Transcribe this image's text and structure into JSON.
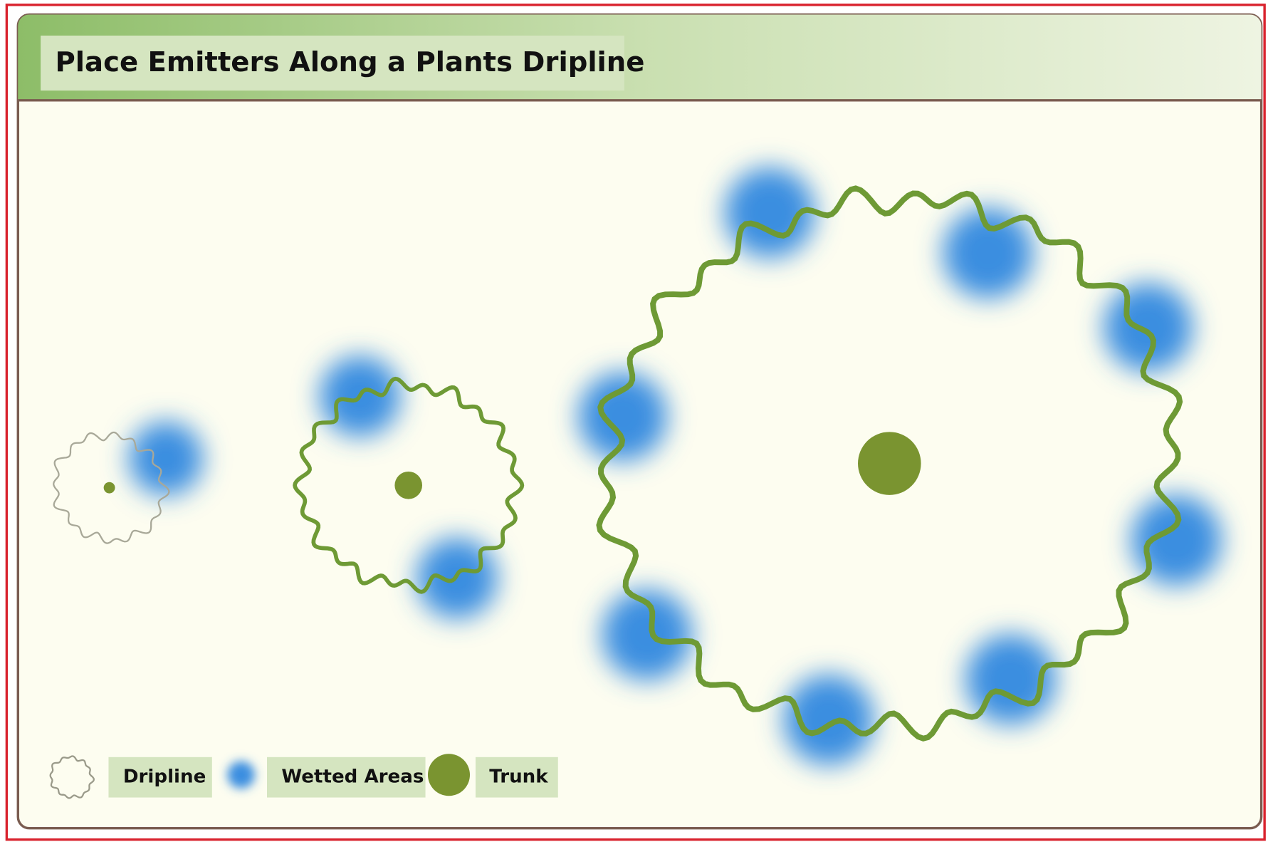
{
  "header": {
    "title": "Place Emitters Along a Plants Dripline"
  },
  "legend": [
    {
      "label": "Dripline"
    },
    {
      "label": "Wetted Areas"
    },
    {
      "label": "Trunk"
    }
  ]
}
